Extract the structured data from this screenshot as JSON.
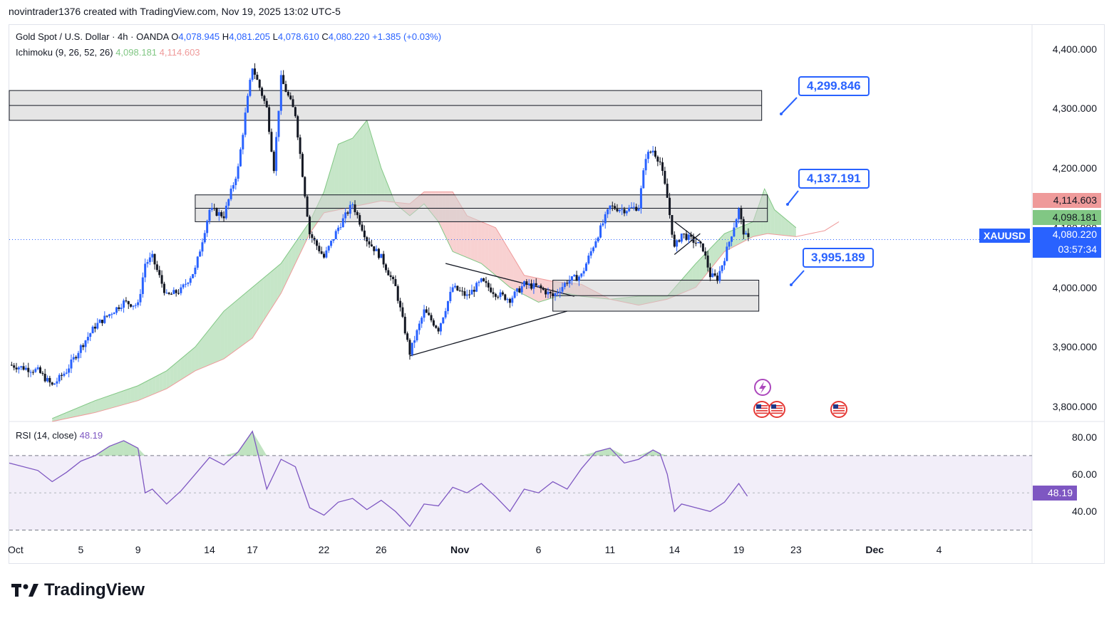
{
  "header": {
    "author_line": "novintrader1376 created with TradingView.com, Nov 19, 2025 13:02 UTC-5"
  },
  "legend": {
    "symbol_title": "Gold Spot / U.S. Dollar · 4h · OANDA",
    "o_label": "O",
    "o_value": "4,078.945",
    "h_label": "H",
    "h_value": "4,081.205",
    "l_label": "L",
    "l_value": "4,078.610",
    "c_label": "C",
    "c_value": "4,080.220",
    "change": "+1.385 (+0.03%)",
    "ichimoku_label": "Ichimoku (9, 26, 52, 26)",
    "ichimoku_a": "4,098.181",
    "ichimoku_b": "4,114.603",
    "rsi_label": "RSI (14, close)",
    "rsi_value": "48.19"
  },
  "price_tags": {
    "symbol": "XAUUSD",
    "last": "4,080.220",
    "countdown": "03:57:34",
    "span_b": "4,114.603",
    "span_a": "4,098.181",
    "rsi": "48.19"
  },
  "callouts": {
    "upper": "4,299.846",
    "middle": "4,137.191",
    "lower": "3,995.189"
  },
  "footer": {
    "brand": "TradingView"
  },
  "colors": {
    "up": "#2962ff",
    "down": "#131722",
    "cloud_bull": "#81c784",
    "cloud_bear": "#ef9a9a",
    "rsi_line": "#7e57c2",
    "zone": "#cfcfcf",
    "accent": "#2962ff"
  },
  "chart_data": {
    "type": "candlestick",
    "title": "Gold Spot / U.S. Dollar · 4h · OANDA",
    "y_ticks": [
      "4,400.000",
      "4,300.000",
      "4,200.000",
      "4,100.000",
      "4,000.000",
      "3,900.000",
      "3,800.000"
    ],
    "y_tick_values": [
      4400,
      4300,
      4200,
      4100,
      4000,
      3900,
      3800
    ],
    "x_ticks": [
      "Oct",
      "5",
      "9",
      "14",
      "17",
      "22",
      "26",
      "Nov",
      "6",
      "11",
      "14",
      "19",
      "23",
      "Dec",
      "4"
    ],
    "x_tick_days": [
      0,
      5,
      9,
      14,
      17,
      22,
      26,
      31.5,
      37,
      42,
      46.5,
      51,
      55,
      60.5,
      65
    ],
    "ylim": [
      3775,
      4440
    ],
    "xlim_days": [
      0,
      71.5
    ],
    "price_path": [
      [
        0,
        3870
      ],
      [
        2,
        3860
      ],
      [
        3,
        3835
      ],
      [
        4,
        3860
      ],
      [
        5,
        3900
      ],
      [
        6,
        3935
      ],
      [
        7,
        3955
      ],
      [
        8,
        3975
      ],
      [
        9,
        3970
      ],
      [
        9.5,
        4040
      ],
      [
        10,
        4050
      ],
      [
        11,
        3985
      ],
      [
        12,
        3995
      ],
      [
        13,
        4030
      ],
      [
        13.5,
        4080
      ],
      [
        14,
        4130
      ],
      [
        15,
        4120
      ],
      [
        16,
        4200
      ],
      [
        16.5,
        4290
      ],
      [
        17,
        4370
      ],
      [
        18,
        4300
      ],
      [
        18.5,
        4200
      ],
      [
        19,
        4350
      ],
      [
        20,
        4290
      ],
      [
        21,
        4090
      ],
      [
        22,
        4050
      ],
      [
        23,
        4100
      ],
      [
        24,
        4140
      ],
      [
        25,
        4080
      ],
      [
        26,
        4050
      ],
      [
        27,
        4000
      ],
      [
        28,
        3890
      ],
      [
        29,
        3960
      ],
      [
        30,
        3930
      ],
      [
        31,
        4000
      ],
      [
        32,
        3985
      ],
      [
        33,
        4010
      ],
      [
        34,
        3990
      ],
      [
        35,
        3980
      ],
      [
        36,
        4005
      ],
      [
        37,
        4000
      ],
      [
        38,
        3985
      ],
      [
        39,
        4010
      ],
      [
        40,
        4020
      ],
      [
        41,
        4080
      ],
      [
        42,
        4135
      ],
      [
        43,
        4130
      ],
      [
        44,
        4135
      ],
      [
        44.5,
        4220
      ],
      [
        45,
        4230
      ],
      [
        45.5,
        4210
      ],
      [
        46,
        4150
      ],
      [
        46.5,
        4065
      ],
      [
        47,
        4090
      ],
      [
        48,
        4075
      ],
      [
        48.5,
        4065
      ],
      [
        49,
        4020
      ],
      [
        49.5,
        4015
      ],
      [
        50,
        4050
      ],
      [
        51,
        4130
      ],
      [
        51.3,
        4095
      ],
      [
        51.6,
        4080
      ]
    ],
    "cloud_span_a": [
      [
        3,
        3780
      ],
      [
        6,
        3810
      ],
      [
        9,
        3835
      ],
      [
        11,
        3860
      ],
      [
        13,
        3900
      ],
      [
        15,
        3960
      ],
      [
        17,
        4000
      ],
      [
        19,
        4040
      ],
      [
        21,
        4110
      ],
      [
        22,
        4160
      ],
      [
        23,
        4240
      ],
      [
        24,
        4250
      ],
      [
        25,
        4280
      ],
      [
        26,
        4200
      ],
      [
        27,
        4140
      ],
      [
        28,
        4120
      ],
      [
        29,
        4140
      ],
      [
        30,
        4110
      ],
      [
        31,
        4060
      ],
      [
        33,
        4040
      ],
      [
        35,
        4000
      ],
      [
        37,
        3975
      ],
      [
        39,
        3990
      ],
      [
        40,
        3985
      ],
      [
        42,
        3980
      ],
      [
        44,
        3985
      ],
      [
        46,
        3985
      ],
      [
        48,
        4040
      ],
      [
        50,
        4090
      ],
      [
        52,
        4110
      ],
      [
        52.8,
        4165
      ],
      [
        53.5,
        4130
      ],
      [
        55,
        4100
      ]
    ],
    "cloud_span_b": [
      [
        3,
        3775
      ],
      [
        6,
        3790
      ],
      [
        9,
        3810
      ],
      [
        11,
        3830
      ],
      [
        13,
        3860
      ],
      [
        15,
        3880
      ],
      [
        17,
        3915
      ],
      [
        19,
        3990
      ],
      [
        21,
        4090
      ],
      [
        22,
        4125
      ],
      [
        24,
        4135
      ],
      [
        26,
        4145
      ],
      [
        28,
        4140
      ],
      [
        29,
        4160
      ],
      [
        31,
        4160
      ],
      [
        32,
        4120
      ],
      [
        34,
        4100
      ],
      [
        35,
        4060
      ],
      [
        36,
        4020
      ],
      [
        38,
        4010
      ],
      [
        40,
        4005
      ],
      [
        42,
        3980
      ],
      [
        44,
        3970
      ],
      [
        46,
        3980
      ],
      [
        48,
        4000
      ],
      [
        50,
        4060
      ],
      [
        52,
        4085
      ],
      [
        53,
        4090
      ],
      [
        55,
        4085
      ],
      [
        57,
        4095
      ],
      [
        58,
        4110
      ]
    ],
    "zones": [
      {
        "from_day": 0,
        "to_day": 52.6,
        "low": 4280,
        "high": 4330
      },
      {
        "from_day": 13,
        "to_day": 53,
        "low": 4110,
        "high": 4155
      },
      {
        "from_day": 38,
        "to_day": 52.4,
        "low": 3960,
        "high": 4012
      }
    ],
    "callout_levels": [
      4299.846,
      4137.191,
      3995.189
    ],
    "rsi": {
      "label": "RSI (14, close)",
      "value": 48.19,
      "bands": [
        70,
        30
      ],
      "mid": 50,
      "y_ticks": [
        "80.00",
        "60.00",
        "40.00"
      ],
      "y_tick_values": [
        80,
        60,
        40
      ],
      "ylim": [
        26,
        86
      ],
      "series": [
        [
          0,
          66
        ],
        [
          2,
          62
        ],
        [
          3,
          56
        ],
        [
          4,
          61
        ],
        [
          5,
          67
        ],
        [
          6,
          70
        ],
        [
          7,
          75
        ],
        [
          8,
          78
        ],
        [
          9,
          74
        ],
        [
          9.5,
          50
        ],
        [
          10,
          52
        ],
        [
          11,
          44
        ],
        [
          12,
          51
        ],
        [
          13,
          60
        ],
        [
          14,
          69
        ],
        [
          15,
          65
        ],
        [
          16,
          72
        ],
        [
          17,
          83
        ],
        [
          18,
          52
        ],
        [
          19,
          68
        ],
        [
          20,
          64
        ],
        [
          21,
          42
        ],
        [
          22,
          38
        ],
        [
          23,
          45
        ],
        [
          24,
          47
        ],
        [
          25,
          41
        ],
        [
          26,
          46
        ],
        [
          27,
          40
        ],
        [
          28,
          32
        ],
        [
          29,
          44
        ],
        [
          30,
          43
        ],
        [
          31,
          53
        ],
        [
          32,
          50
        ],
        [
          33,
          55
        ],
        [
          34,
          48
        ],
        [
          35,
          40
        ],
        [
          36,
          52
        ],
        [
          37,
          50
        ],
        [
          38,
          56
        ],
        [
          39,
          52
        ],
        [
          40,
          63
        ],
        [
          41,
          72
        ],
        [
          42,
          74
        ],
        [
          43,
          66
        ],
        [
          44,
          68
        ],
        [
          45,
          73
        ],
        [
          45.5,
          71
        ],
        [
          46,
          60
        ],
        [
          46.5,
          40
        ],
        [
          47,
          44
        ],
        [
          48,
          42
        ],
        [
          49,
          40
        ],
        [
          50,
          45
        ],
        [
          51,
          55
        ],
        [
          51.6,
          48.19
        ]
      ]
    }
  }
}
